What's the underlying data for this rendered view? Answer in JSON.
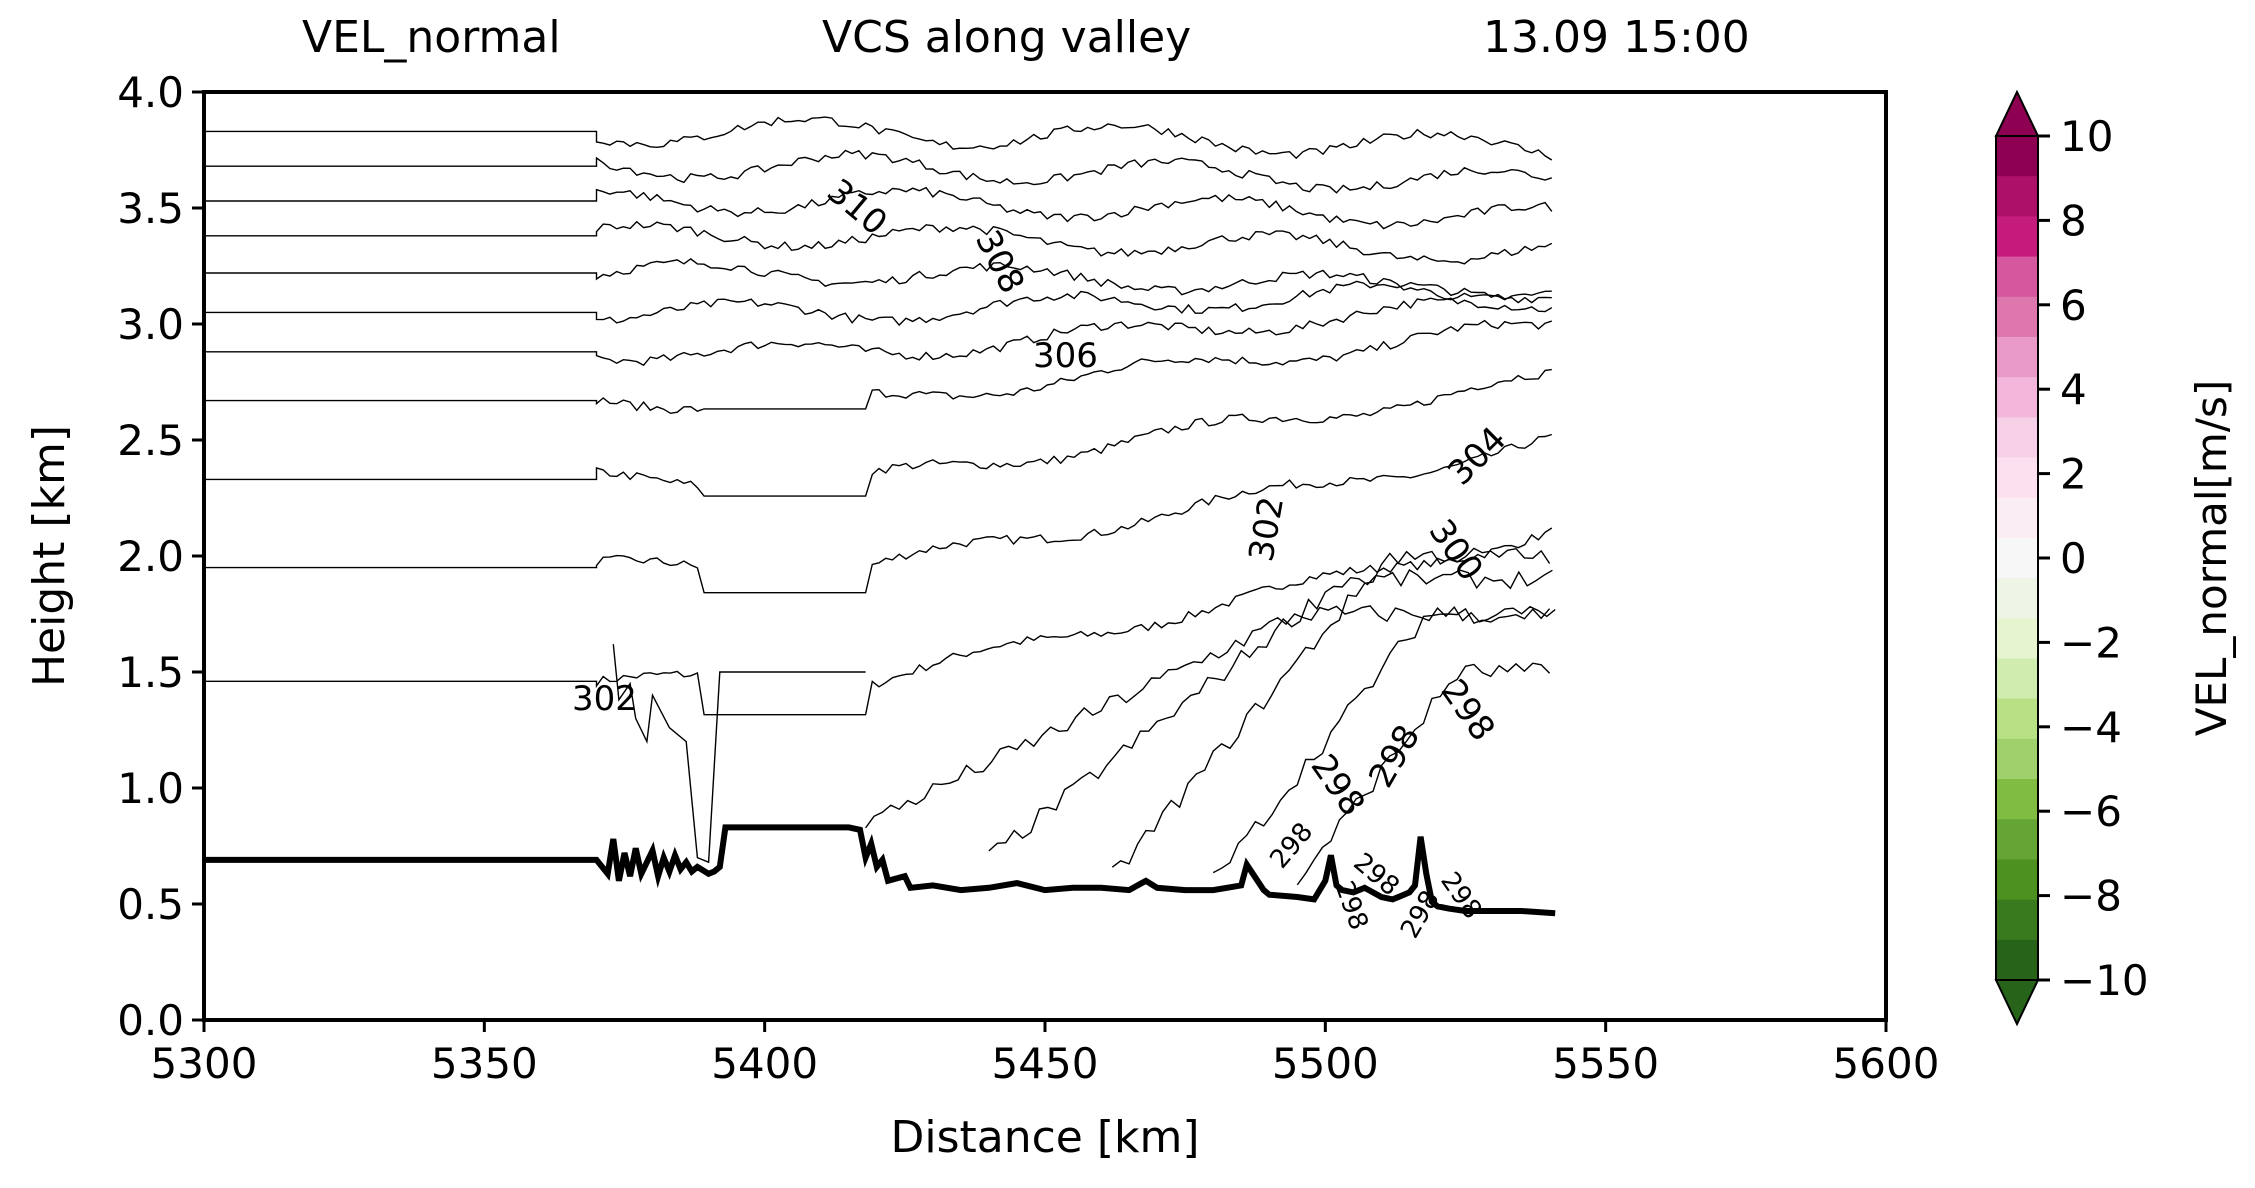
{
  "chart_data": {
    "type": "line",
    "title_left": "VEL_normal",
    "title_center": "VCS along valley",
    "title_right": "13.09 15:00",
    "xlabel": "Distance [km]",
    "ylabel": "Height [km]",
    "xlim": [
      5300,
      5600
    ],
    "ylim": [
      0.0,
      4.0
    ],
    "xticks": [
      5300,
      5350,
      5400,
      5450,
      5500,
      5550,
      5600
    ],
    "xtick_labels": [
      "5300",
      "5350",
      "5400",
      "5450",
      "5500",
      "5550",
      "5600"
    ],
    "yticks": [
      0.0,
      0.5,
      1.0,
      1.5,
      2.0,
      2.5,
      3.0,
      3.5,
      4.0
    ],
    "ytick_labels": [
      "0.0",
      "0.5",
      "1.0",
      "1.5",
      "2.0",
      "2.5",
      "3.0",
      "3.5",
      "4.0"
    ],
    "grid": false,
    "terrain": {
      "name": "terrain",
      "x": [
        5300,
        5370,
        5372,
        5373,
        5374,
        5375,
        5376,
        5377,
        5378,
        5380,
        5381,
        5382,
        5383,
        5384,
        5385,
        5386,
        5387,
        5388,
        5390,
        5391,
        5392,
        5393,
        5394,
        5395,
        5400,
        5405,
        5410,
        5415,
        5417,
        5418,
        5419,
        5420,
        5421,
        5422,
        5425,
        5426,
        5430,
        5435,
        5440,
        5445,
        5450,
        5455,
        5460,
        5465,
        5468,
        5470,
        5475,
        5480,
        5485,
        5486,
        5489,
        5490,
        5495,
        5498,
        5500,
        5501,
        5502,
        5503,
        5505,
        5507,
        5510,
        5512,
        5515,
        5516,
        5517,
        5518,
        5519,
        5520,
        5522,
        5525,
        5530,
        5535,
        5541
      ],
      "y": [
        0.69,
        0.69,
        0.63,
        0.78,
        0.6,
        0.72,
        0.62,
        0.74,
        0.63,
        0.73,
        0.62,
        0.7,
        0.64,
        0.71,
        0.65,
        0.68,
        0.64,
        0.66,
        0.63,
        0.64,
        0.66,
        0.83,
        0.83,
        0.83,
        0.83,
        0.83,
        0.83,
        0.83,
        0.82,
        0.7,
        0.76,
        0.66,
        0.69,
        0.6,
        0.62,
        0.57,
        0.58,
        0.56,
        0.57,
        0.59,
        0.56,
        0.57,
        0.57,
        0.56,
        0.6,
        0.57,
        0.56,
        0.56,
        0.58,
        0.67,
        0.56,
        0.54,
        0.53,
        0.52,
        0.6,
        0.71,
        0.58,
        0.56,
        0.55,
        0.57,
        0.53,
        0.52,
        0.55,
        0.58,
        0.79,
        0.63,
        0.51,
        0.49,
        0.48,
        0.47,
        0.47,
        0.47,
        0.46
      ]
    },
    "contour_labels": [
      "310",
      "308",
      "306",
      "304",
      "302",
      "300",
      "302",
      "298",
      "298",
      "298",
      "298",
      "298",
      "298",
      "298",
      "298"
    ],
    "colorbar": {
      "label": "VEL_normal[m/s]",
      "min": -10,
      "max": 10,
      "ticks": [
        10,
        8,
        6,
        4,
        2,
        0,
        -2,
        -4,
        -6,
        -8,
        -10
      ],
      "tick_labels": [
        "10",
        "8",
        "6",
        "4",
        "2",
        "0",
        "−2",
        "−4",
        "−6",
        "−8",
        "−10"
      ],
      "colors_top_to_bottom": [
        "#8e0152",
        "#ad1068",
        "#c51b7d",
        "#d5579e",
        "#de77ae",
        "#e99ac8",
        "#f1b6da",
        "#f6d0e7",
        "#fde0ef",
        "#faedf4",
        "#f7f7f7",
        "#eef4e6",
        "#e6f5d0",
        "#d0ecaf",
        "#b8e186",
        "#9fd06c",
        "#7fbc41",
        "#64a535",
        "#4d9221",
        "#387a1d",
        "#276419"
      ]
    }
  }
}
